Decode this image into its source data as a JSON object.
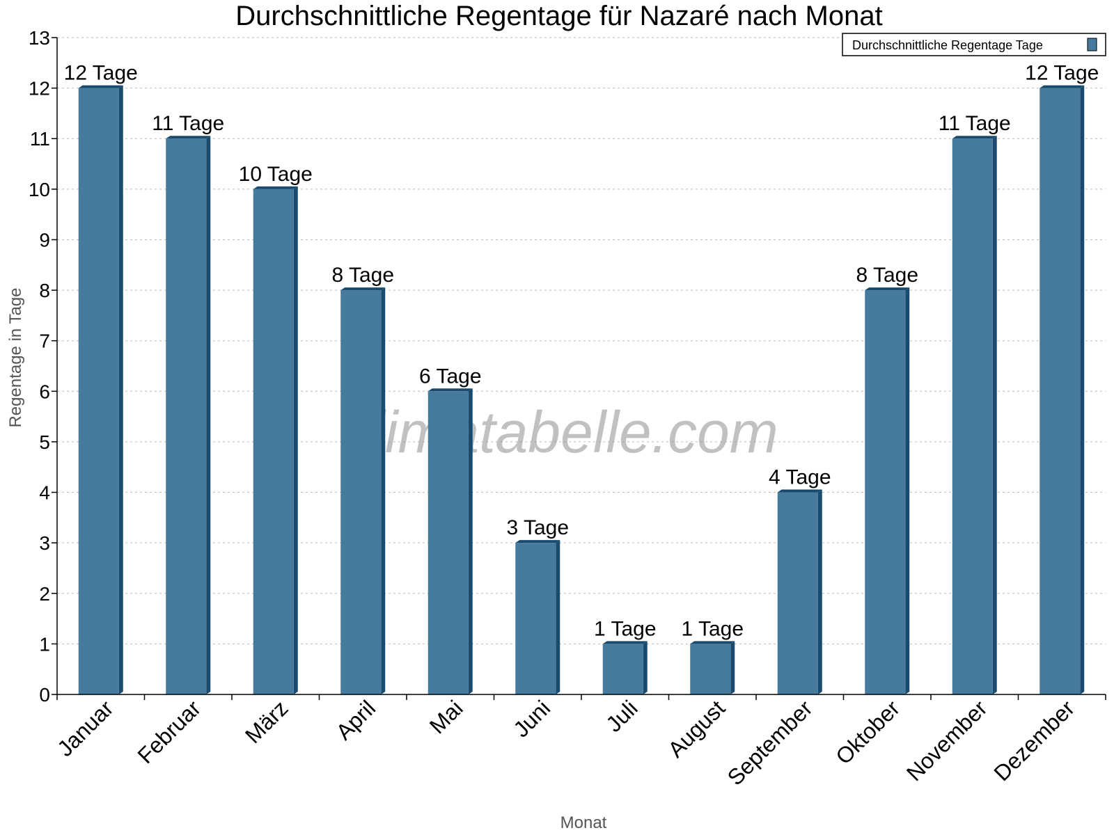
{
  "chart_data": {
    "type": "bar",
    "title": "Durchschnittliche Regentage für Nazaré nach Monat",
    "xlabel": "Monat",
    "ylabel": "Regentage in Tage",
    "categories": [
      "Januar",
      "Februar",
      "März",
      "April",
      "Mai",
      "Juni",
      "Juli",
      "August",
      "September",
      "Oktober",
      "November",
      "Dezember"
    ],
    "series": [
      {
        "name": "Durchschnittliche Regentage Tage",
        "values": [
          12,
          11,
          10,
          8,
          6,
          3,
          1,
          1,
          4,
          8,
          11,
          12
        ]
      }
    ],
    "data_labels": [
      "12 Tage",
      "11 Tage",
      "10 Tage",
      "8 Tage",
      "6 Tage",
      "3 Tage",
      "1 Tage",
      "1 Tage",
      "4 Tage",
      "8 Tage",
      "11 Tage",
      "12 Tage"
    ],
    "ylim": [
      0,
      13
    ],
    "yticks": [
      0,
      1,
      2,
      3,
      4,
      5,
      6,
      7,
      8,
      9,
      10,
      11,
      12,
      13
    ],
    "grid": true,
    "legend_position": "top-right",
    "watermark": "klimatabelle.com",
    "colors": {
      "bar": "#467b9d",
      "bar_side": "#1a4b6e"
    }
  }
}
